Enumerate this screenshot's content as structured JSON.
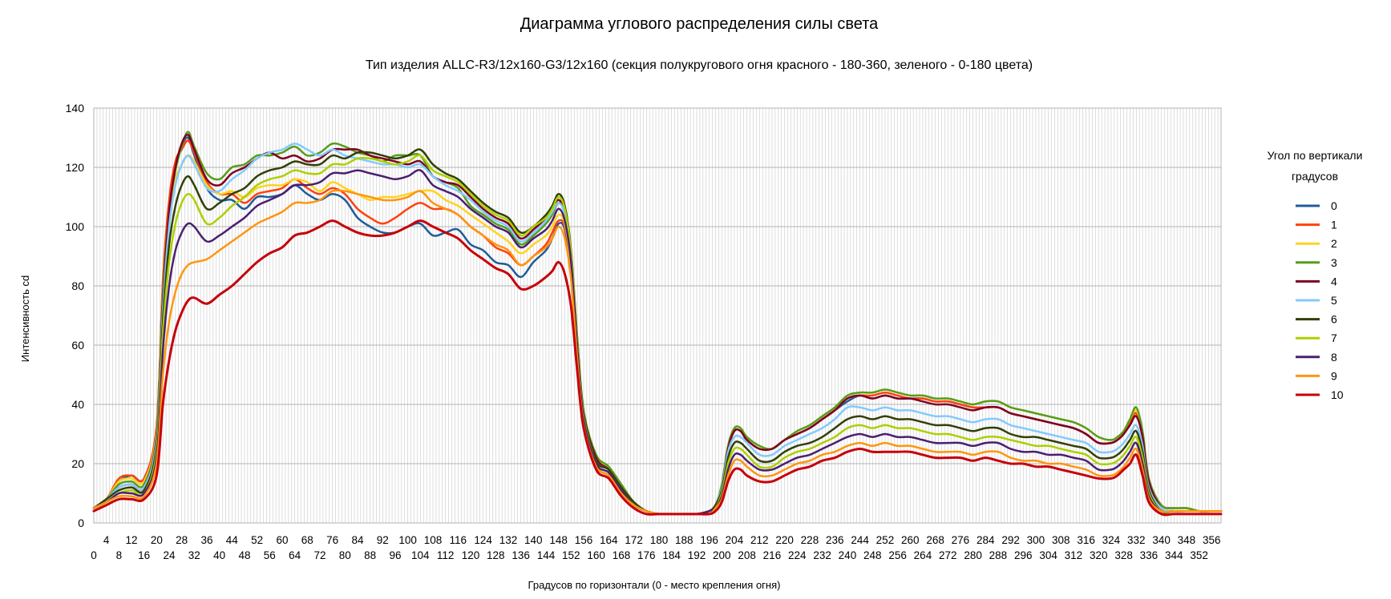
{
  "chart_data": {
    "type": "line",
    "title": "Диаграмма углового распределения силы света",
    "subtitle": "Тип изделия ALLC-R3/12x160-G3/12x160 (секция полукругового огня красного - 180-360, зеленого - 0-180 цвета)",
    "xlabel": "Градусов по горизонтали (0 - место крепления огня)",
    "ylabel": "Интенсивность cd",
    "xlim": [
      0,
      359
    ],
    "ylim": [
      0,
      140
    ],
    "y_ticks": [
      0,
      20,
      40,
      60,
      80,
      100,
      120,
      140
    ],
    "x_tick_step": 4,
    "grid": true,
    "legend_title": "Угол по вертикали градусов",
    "legend_title_lines": [
      "Угол по вертикали",
      "градусов"
    ],
    "legend_position": "right",
    "x": [
      0,
      4,
      8,
      12,
      16,
      20,
      22,
      24,
      26,
      28,
      30,
      32,
      36,
      40,
      44,
      48,
      52,
      56,
      60,
      64,
      68,
      72,
      76,
      80,
      84,
      88,
      92,
      96,
      100,
      104,
      108,
      112,
      116,
      120,
      124,
      128,
      132,
      136,
      140,
      144,
      146,
      148,
      150,
      152,
      154,
      156,
      160,
      164,
      168,
      172,
      176,
      180,
      184,
      188,
      192,
      196,
      198,
      200,
      202,
      204,
      206,
      208,
      212,
      216,
      220,
      224,
      228,
      232,
      236,
      240,
      244,
      248,
      252,
      256,
      260,
      264,
      268,
      272,
      276,
      280,
      284,
      288,
      292,
      296,
      300,
      304,
      308,
      312,
      316,
      320,
      324,
      326,
      328,
      330,
      332,
      334,
      336,
      340,
      344,
      348,
      352,
      356,
      359
    ],
    "series": [
      {
        "name": "0",
        "color": "#1f5c99",
        "width": 2.5,
        "values": [
          5,
          8,
          14,
          16,
          15,
          32,
          80,
          108,
          120,
          127,
          130,
          124,
          113,
          109,
          109,
          106,
          110,
          110,
          111,
          114,
          111,
          109,
          111,
          109,
          103,
          100,
          98,
          98,
          100,
          101,
          97,
          98,
          99,
          94,
          92,
          88,
          87,
          83,
          88,
          92,
          96,
          101,
          99,
          85,
          58,
          35,
          21,
          18,
          12,
          7,
          4,
          3,
          3,
          3,
          3,
          4,
          6,
          12,
          25,
          31,
          31,
          28,
          25,
          25,
          28,
          30,
          32,
          35,
          38,
          41,
          43,
          42,
          43,
          42,
          42,
          42,
          41,
          41,
          40,
          39,
          39,
          39,
          37,
          36,
          35,
          34,
          33,
          32,
          30,
          27,
          27,
          28,
          30,
          34,
          37,
          30,
          14,
          6,
          5,
          5,
          4,
          4,
          4
        ]
      },
      {
        "name": "1",
        "color": "#ff420e",
        "width": 2.5,
        "values": [
          5,
          8,
          15,
          16,
          15,
          33,
          82,
          109,
          122,
          126,
          129,
          125,
          115,
          111,
          111,
          108,
          111,
          112,
          113,
          116,
          113,
          111,
          113,
          111,
          106,
          103,
          101,
          103,
          106,
          108,
          106,
          106,
          104,
          100,
          97,
          93,
          91,
          87,
          90,
          94,
          98,
          102,
          100,
          86,
          59,
          36,
          22,
          18,
          12,
          7,
          4,
          3,
          3,
          3,
          3,
          4,
          6,
          12,
          25,
          31,
          31,
          28,
          25,
          25,
          28,
          30,
          32,
          35,
          38,
          42,
          43,
          43,
          44,
          43,
          42,
          42,
          41,
          41,
          40,
          39,
          39,
          39,
          37,
          36,
          35,
          34,
          33,
          32,
          30,
          27,
          27,
          28,
          30,
          34,
          37,
          30,
          14,
          6,
          5,
          5,
          4,
          4,
          4
        ]
      },
      {
        "name": "2",
        "color": "#ffd320",
        "width": 2.5,
        "values": [
          5,
          8,
          14,
          15,
          14,
          31,
          79,
          104,
          116,
          121,
          124,
          122,
          114,
          111,
          112,
          110,
          113,
          114,
          114,
          116,
          115,
          112,
          115,
          113,
          111,
          109,
          110,
          110,
          111,
          112,
          112,
          109,
          107,
          104,
          101,
          98,
          95,
          91,
          94,
          97,
          100,
          104,
          101,
          87,
          60,
          37,
          22,
          19,
          13,
          7,
          4,
          3,
          3,
          3,
          3,
          4,
          6,
          13,
          26,
          32,
          32,
          29,
          26,
          25,
          28,
          31,
          33,
          36,
          39,
          43,
          44,
          44,
          45,
          44,
          43,
          43,
          42,
          42,
          41,
          40,
          41,
          41,
          39,
          38,
          37,
          36,
          35,
          34,
          32,
          29,
          28,
          29,
          31,
          35,
          38,
          31,
          15,
          6,
          5,
          5,
          4,
          4,
          4
        ]
      },
      {
        "name": "3",
        "color": "#579d1c",
        "width": 2.5,
        "values": [
          5,
          8,
          13,
          14,
          13,
          30,
          78,
          105,
          119,
          127,
          132,
          127,
          118,
          116,
          120,
          121,
          124,
          124,
          125,
          127,
          124,
          125,
          128,
          127,
          125,
          124,
          122,
          124,
          124,
          124,
          117,
          115,
          113,
          107,
          104,
          101,
          99,
          94,
          97,
          101,
          104,
          108,
          105,
          90,
          62,
          38,
          23,
          19,
          13,
          7,
          4,
          3,
          3,
          3,
          3,
          4,
          6,
          13,
          26,
          32,
          32,
          29,
          26,
          25,
          28,
          31,
          33,
          36,
          39,
          43,
          44,
          44,
          45,
          44,
          43,
          43,
          42,
          42,
          41,
          40,
          41,
          41,
          39,
          38,
          37,
          36,
          35,
          34,
          32,
          29,
          28,
          29,
          31,
          35,
          39,
          31,
          15,
          6,
          5,
          5,
          4,
          4,
          4
        ]
      },
      {
        "name": "4",
        "color": "#7e0021",
        "width": 2.5,
        "values": [
          5,
          8,
          12,
          13,
          12,
          29,
          75,
          105,
          120,
          128,
          131,
          126,
          116,
          114,
          118,
          120,
          123,
          125,
          123,
          124,
          122,
          123,
          126,
          126,
          126,
          124,
          123,
          122,
          121,
          122,
          117,
          115,
          114,
          110,
          106,
          103,
          101,
          96,
          99,
          103,
          106,
          109,
          105,
          90,
          61,
          37,
          22,
          18,
          12,
          7,
          4,
          3,
          3,
          3,
          3,
          4,
          6,
          12,
          25,
          31,
          31,
          28,
          25,
          25,
          28,
          30,
          32,
          35,
          38,
          42,
          43,
          42,
          43,
          42,
          42,
          41,
          40,
          40,
          39,
          38,
          39,
          39,
          37,
          36,
          35,
          34,
          33,
          32,
          30,
          27,
          27,
          28,
          30,
          33,
          36,
          29,
          14,
          5,
          4,
          4,
          4,
          4,
          4
        ]
      },
      {
        "name": "5",
        "color": "#83caff",
        "width": 2.5,
        "values": [
          5,
          8,
          12,
          13,
          12,
          28,
          72,
          100,
          114,
          121,
          124,
          121,
          113,
          112,
          116,
          119,
          123,
          125,
          126,
          128,
          126,
          124,
          126,
          124,
          123,
          122,
          121,
          121,
          120,
          121,
          117,
          114,
          112,
          109,
          105,
          102,
          100,
          95,
          98,
          102,
          105,
          108,
          104,
          89,
          60,
          36,
          21,
          18,
          12,
          7,
          4,
          3,
          3,
          3,
          3,
          4,
          6,
          12,
          24,
          29,
          29,
          27,
          23,
          23,
          26,
          28,
          30,
          32,
          35,
          39,
          39,
          38,
          39,
          38,
          38,
          37,
          36,
          36,
          35,
          34,
          35,
          35,
          33,
          32,
          31,
          30,
          29,
          28,
          27,
          24,
          24,
          25,
          27,
          30,
          33,
          26,
          12,
          5,
          4,
          4,
          4,
          4,
          4
        ]
      },
      {
        "name": "6",
        "color": "#314004",
        "width": 2.5,
        "values": [
          5,
          8,
          11,
          12,
          11,
          26,
          68,
          94,
          107,
          114,
          117,
          114,
          106,
          108,
          111,
          113,
          117,
          119,
          120,
          122,
          121,
          121,
          124,
          123,
          125,
          125,
          124,
          123,
          124,
          126,
          121,
          118,
          116,
          112,
          108,
          105,
          103,
          98,
          100,
          104,
          107,
          111,
          107,
          92,
          62,
          37,
          21,
          18,
          12,
          7,
          4,
          3,
          3,
          3,
          3,
          4,
          6,
          11,
          22,
          27,
          27,
          25,
          21,
          21,
          24,
          26,
          27,
          29,
          32,
          35,
          36,
          35,
          36,
          35,
          35,
          34,
          33,
          33,
          32,
          31,
          32,
          32,
          30,
          29,
          29,
          28,
          27,
          26,
          25,
          22,
          22,
          23,
          25,
          28,
          31,
          24,
          11,
          4,
          4,
          4,
          4,
          4,
          4
        ]
      },
      {
        "name": "7",
        "color": "#aecf00",
        "width": 2.5,
        "values": [
          5,
          7,
          10,
          11,
          10,
          24,
          64,
          88,
          101,
          108,
          111,
          109,
          101,
          103,
          107,
          110,
          114,
          116,
          117,
          119,
          118,
          118,
          121,
          121,
          123,
          123,
          122,
          121,
          122,
          124,
          119,
          117,
          115,
          111,
          107,
          104,
          102,
          97,
          100,
          103,
          106,
          110,
          106,
          91,
          61,
          36,
          20,
          17,
          11,
          6,
          4,
          3,
          3,
          3,
          3,
          4,
          5,
          10,
          20,
          25,
          25,
          23,
          19,
          19,
          22,
          24,
          25,
          27,
          29,
          32,
          33,
          32,
          33,
          32,
          32,
          31,
          30,
          30,
          29,
          28,
          29,
          29,
          28,
          27,
          26,
          26,
          25,
          24,
          23,
          20,
          20,
          21,
          23,
          26,
          29,
          22,
          10,
          4,
          4,
          4,
          4,
          4,
          4
        ]
      },
      {
        "name": "8",
        "color": "#4b1f6f",
        "width": 2.5,
        "values": [
          5,
          7,
          10,
          10,
          10,
          22,
          58,
          80,
          92,
          98,
          101,
          100,
          95,
          97,
          100,
          103,
          107,
          109,
          111,
          114,
          114,
          115,
          118,
          118,
          119,
          118,
          117,
          116,
          117,
          119,
          114,
          112,
          110,
          106,
          103,
          100,
          98,
          93,
          96,
          99,
          102,
          106,
          102,
          88,
          59,
          35,
          20,
          17,
          11,
          6,
          4,
          3,
          3,
          3,
          3,
          4,
          5,
          9,
          18,
          23,
          23,
          21,
          18,
          18,
          20,
          22,
          23,
          25,
          27,
          29,
          30,
          29,
          30,
          29,
          29,
          28,
          27,
          27,
          27,
          26,
          27,
          27,
          25,
          24,
          24,
          23,
          23,
          22,
          21,
          18,
          18,
          19,
          21,
          24,
          27,
          20,
          9,
          4,
          4,
          4,
          4,
          4,
          4
        ]
      },
      {
        "name": "9",
        "color": "#ff950e",
        "width": 2.5,
        "values": [
          5,
          7,
          9,
          9,
          9,
          20,
          50,
          68,
          78,
          84,
          87,
          88,
          89,
          92,
          95,
          98,
          101,
          103,
          105,
          108,
          108,
          109,
          112,
          112,
          111,
          110,
          109,
          109,
          110,
          112,
          108,
          106,
          104,
          100,
          97,
          94,
          92,
          87,
          90,
          93,
          96,
          100,
          96,
          82,
          55,
          33,
          19,
          16,
          10,
          6,
          4,
          3,
          3,
          3,
          3,
          3,
          5,
          8,
          16,
          21,
          21,
          19,
          16,
          16,
          18,
          20,
          21,
          23,
          24,
          26,
          27,
          26,
          27,
          26,
          26,
          25,
          24,
          24,
          24,
          23,
          24,
          24,
          22,
          21,
          21,
          20,
          20,
          19,
          18,
          16,
          16,
          17,
          19,
          22,
          25,
          18,
          8,
          4,
          4,
          4,
          4,
          4,
          4
        ]
      },
      {
        "name": "10",
        "color": "#c5000b",
        "width": 3,
        "values": [
          4,
          6,
          8,
          8,
          8,
          16,
          40,
          55,
          65,
          71,
          75,
          76,
          74,
          77,
          80,
          84,
          88,
          91,
          93,
          97,
          98,
          100,
          102,
          100,
          98,
          97,
          97,
          98,
          100,
          102,
          100,
          98,
          96,
          92,
          89,
          86,
          84,
          79,
          80,
          83,
          85,
          88,
          84,
          73,
          51,
          32,
          18,
          15,
          9,
          5,
          3,
          3,
          3,
          3,
          3,
          3,
          4,
          7,
          14,
          18,
          18,
          16,
          14,
          14,
          16,
          18,
          19,
          21,
          22,
          24,
          25,
          24,
          24,
          24,
          24,
          23,
          22,
          22,
          22,
          21,
          22,
          21,
          20,
          20,
          19,
          19,
          18,
          17,
          16,
          15,
          15,
          16,
          18,
          20,
          23,
          16,
          7,
          3,
          3,
          3,
          3,
          3,
          3
        ]
      }
    ]
  }
}
